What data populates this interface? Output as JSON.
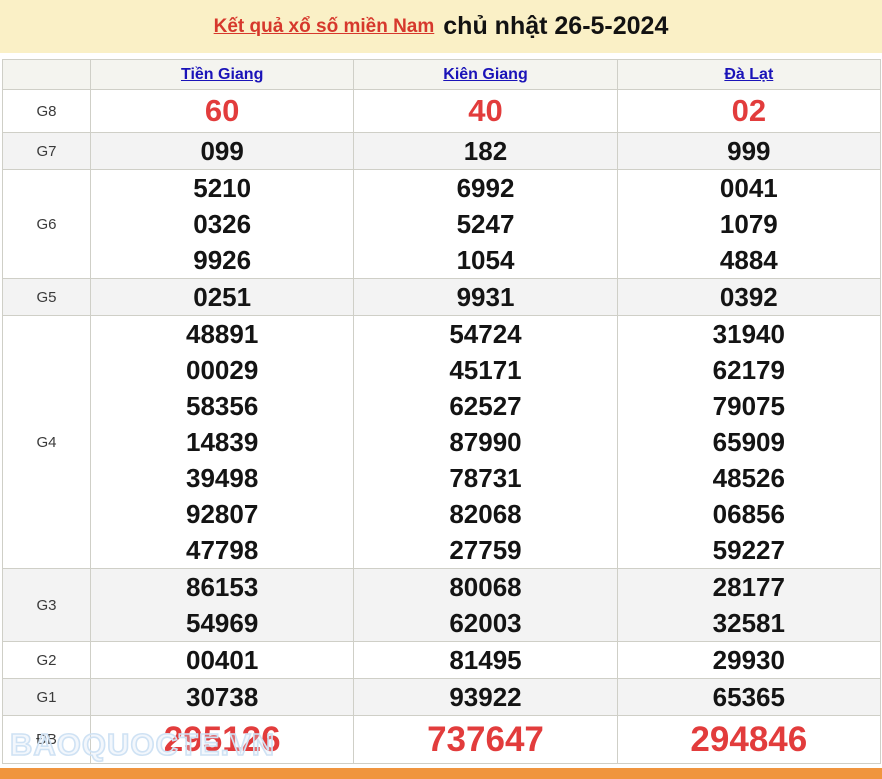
{
  "header": {
    "title_link": "Kết quả xổ số miền Nam",
    "title_date": "chủ nhật 26-5-2024"
  },
  "table": {
    "columns": [
      "Tiền Giang",
      "Kiên Giang",
      "Đà Lạt"
    ],
    "rows": [
      {
        "label": "G8",
        "style": "red-large",
        "shaded": false,
        "values": [
          [
            "60"
          ],
          [
            "40"
          ],
          [
            "02"
          ]
        ]
      },
      {
        "label": "G7",
        "style": "normal",
        "shaded": true,
        "values": [
          [
            "099"
          ],
          [
            "182"
          ],
          [
            "999"
          ]
        ]
      },
      {
        "label": "G6",
        "style": "normal",
        "shaded": false,
        "values": [
          [
            "5210",
            "0326",
            "9926"
          ],
          [
            "6992",
            "5247",
            "1054"
          ],
          [
            "0041",
            "1079",
            "4884"
          ]
        ]
      },
      {
        "label": "G5",
        "style": "normal",
        "shaded": true,
        "values": [
          [
            "0251"
          ],
          [
            "9931"
          ],
          [
            "0392"
          ]
        ]
      },
      {
        "label": "G4",
        "style": "normal",
        "shaded": false,
        "values": [
          [
            "48891",
            "00029",
            "58356",
            "14839",
            "39498",
            "92807",
            "47798"
          ],
          [
            "54724",
            "45171",
            "62527",
            "87990",
            "78731",
            "82068",
            "27759"
          ],
          [
            "31940",
            "62179",
            "79075",
            "65909",
            "48526",
            "06856",
            "59227"
          ]
        ]
      },
      {
        "label": "G3",
        "style": "normal",
        "shaded": true,
        "values": [
          [
            "86153",
            "54969"
          ],
          [
            "80068",
            "62003"
          ],
          [
            "28177",
            "32581"
          ]
        ]
      },
      {
        "label": "G2",
        "style": "normal",
        "shaded": false,
        "values": [
          [
            "00401"
          ],
          [
            "81495"
          ],
          [
            "29930"
          ]
        ]
      },
      {
        "label": "G1",
        "style": "normal",
        "shaded": true,
        "values": [
          [
            "30738"
          ],
          [
            "93922"
          ],
          [
            "65365"
          ]
        ]
      },
      {
        "label": "ĐB",
        "style": "red-xlarge",
        "shaded": false,
        "values": [
          [
            "295126"
          ],
          [
            "737647"
          ],
          [
            "294846"
          ]
        ]
      }
    ]
  },
  "watermark": {
    "text": "BAOQUOCTE.VN"
  },
  "colors": {
    "title_band_bg": "#faf0c6",
    "title_link_red": "#d6382c",
    "province_link_blue": "#1a13b8",
    "number_red": "#e23c3c",
    "number_black": "#141414",
    "shaded_row_bg": "#f3f3f3",
    "header_row_bg": "#f4f4ef",
    "table_border": "#cfcfc7",
    "bottom_bar_orange": "#f0953e",
    "watermark_blue": "#cfe2f4"
  }
}
